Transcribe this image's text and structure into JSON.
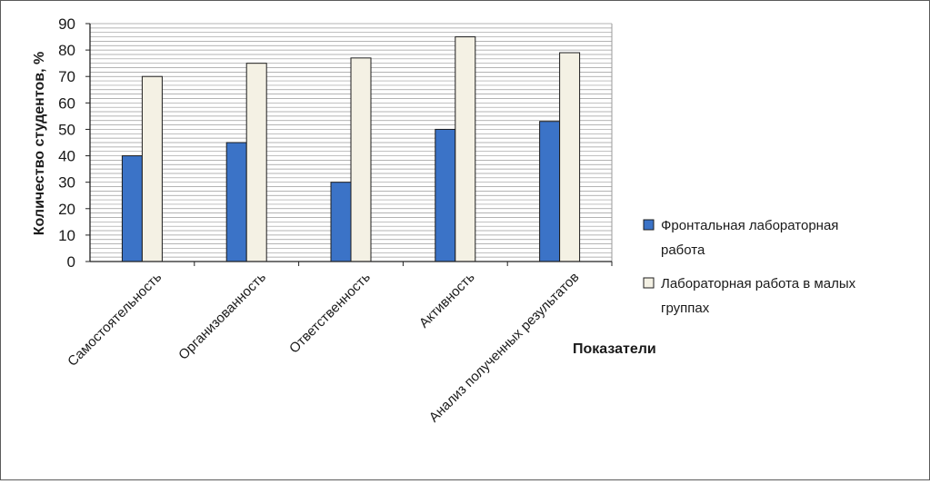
{
  "chart_data": {
    "type": "bar",
    "categories": [
      "Самостоятельность",
      "Организованность",
      "Ответственность",
      "Активность",
      "Анализ полученных результатов"
    ],
    "series": [
      {
        "name": "Фронтальная лабораторная работа",
        "values": [
          40,
          45,
          30,
          50,
          53
        ],
        "color": "#3b73c7"
      },
      {
        "name": "Лабораторная работа в малых группах",
        "values": [
          70,
          75,
          77,
          85,
          79
        ],
        "color": "#f4f1e4"
      }
    ],
    "ylabel": "Количество студентов, %",
    "xlabel": "Показатели",
    "ylim": [
      0,
      90
    ],
    "yticks": [
      0,
      10,
      20,
      30,
      40,
      50,
      60,
      70,
      80,
      90
    ],
    "grid": true,
    "legend_position": "right",
    "legend_lines": [
      [
        "Фронтальная лабораторная",
        "работа"
      ],
      [
        "Лабораторная работа в малых",
        "группах"
      ]
    ]
  }
}
